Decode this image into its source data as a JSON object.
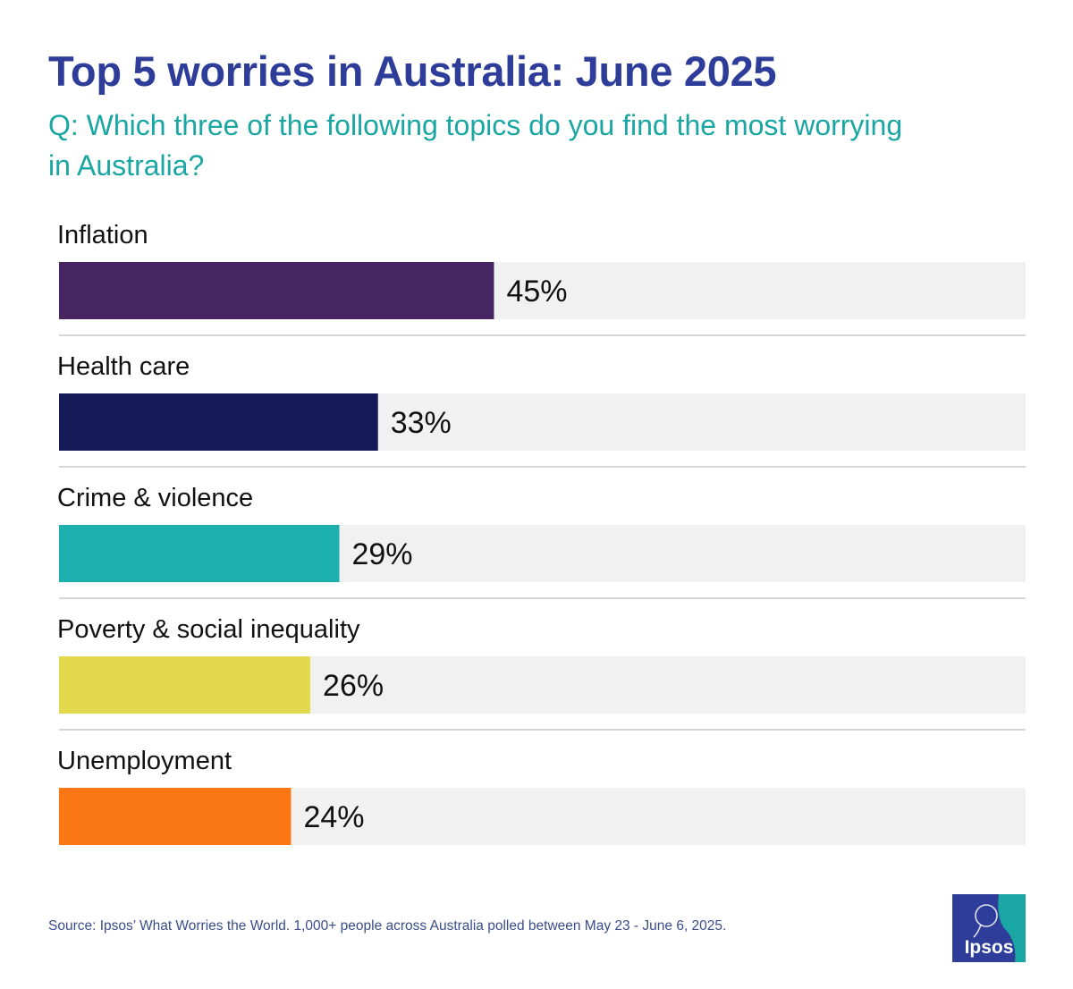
{
  "header": {
    "title": "Top 5 worries in Australia: June 2025",
    "subtitle": "Q: Which three of the following topics do you find the most worrying in Australia?"
  },
  "chart_data": {
    "type": "bar",
    "orientation": "horizontal",
    "categories": [
      "Inflation",
      "Health care",
      "Crime & violence",
      "Poverty & social inequality",
      "Unemployment"
    ],
    "values": [
      45,
      33,
      29,
      26,
      24
    ],
    "labels": [
      "45%",
      "33%",
      "29%",
      "26%",
      "24%"
    ],
    "colors": [
      "#472563",
      "#141b57",
      "#1bb0ad",
      "#e2d94f",
      "#fb7714"
    ],
    "track_color": "#f1f1f1",
    "xlim": [
      0,
      100
    ],
    "title": "Top 5 worries in Australia: June 2025",
    "xlabel": "",
    "ylabel": ""
  },
  "footer": {
    "source": "Source: Ipsos’ What Worries the World. 1,000+ people across Australia polled between May 23 - June 6, 2025."
  },
  "logo": {
    "text": "Ipsos",
    "color_primary": "#2e3d99",
    "color_secondary": "#1aa6a2"
  }
}
